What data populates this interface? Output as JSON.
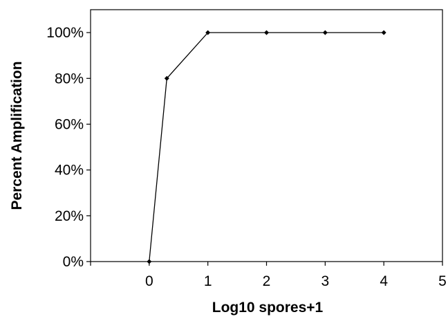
{
  "chart_data": {
    "type": "line",
    "title": "",
    "xlabel": "Log10 spores+1",
    "ylabel": "Percent Amplification",
    "xlim": [
      -1,
      5
    ],
    "ylim": [
      0,
      1.0
    ],
    "x_ticks": [
      0,
      1,
      2,
      3,
      4,
      5
    ],
    "x_tick_labels": [
      "0",
      "1",
      "2",
      "3",
      "4",
      "5"
    ],
    "y_ticks": [
      0,
      0.2,
      0.4,
      0.6,
      0.8,
      1.0
    ],
    "y_tick_labels": [
      "0%",
      "20%",
      "40%",
      "60%",
      "80%",
      "100%"
    ],
    "grid": false,
    "legend": "none",
    "series": [
      {
        "x": [
          0,
          0.3,
          1,
          2,
          3,
          4
        ],
        "y": [
          0,
          0.8,
          1.0,
          1.0,
          1.0,
          1.0
        ],
        "color": "#000000",
        "marker": "diamond"
      }
    ]
  }
}
